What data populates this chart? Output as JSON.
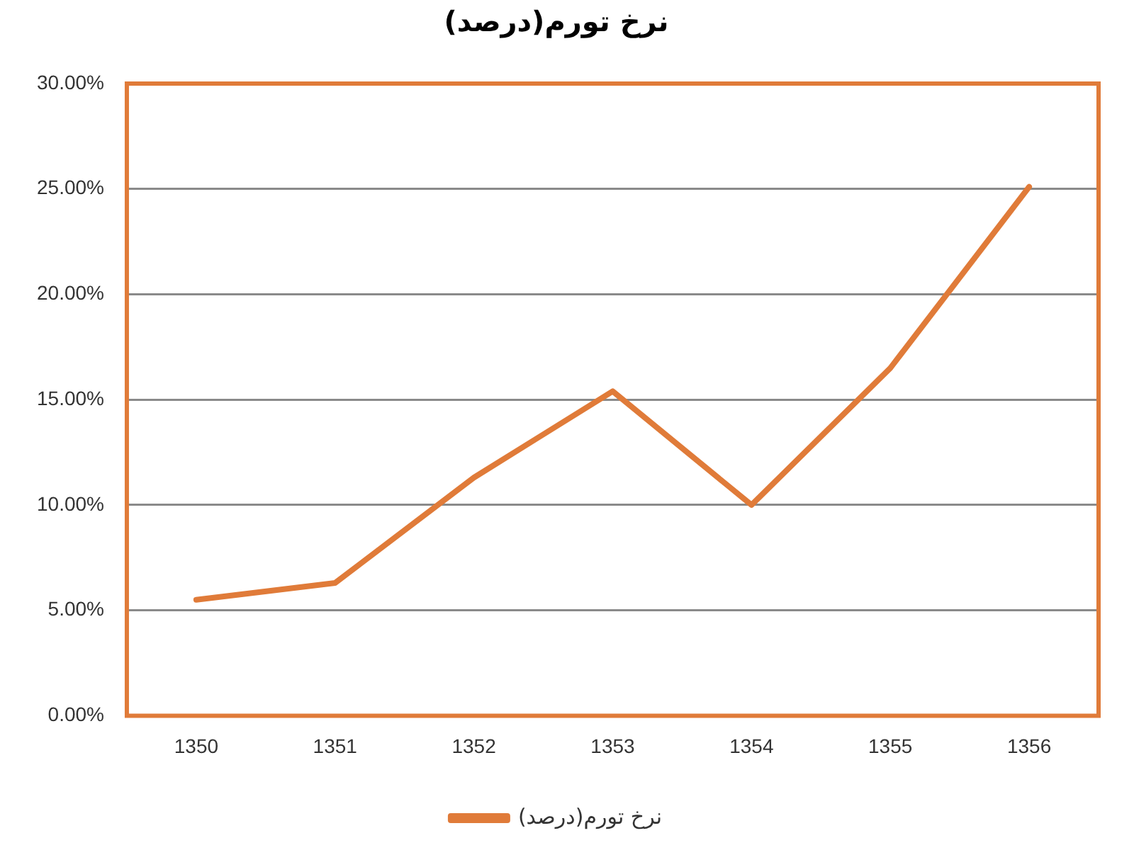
{
  "chart_data": {
    "type": "line",
    "title": "نرخ تورم(درصد)",
    "categories": [
      "1350",
      "1351",
      "1352",
      "1353",
      "1354",
      "1355",
      "1356"
    ],
    "series": [
      {
        "name": "نرخ تورم(درصد)",
        "color": "#e07b39",
        "values": [
          5.5,
          6.3,
          11.3,
          15.4,
          10.0,
          16.5,
          25.1
        ]
      }
    ],
    "ylim": [
      0,
      30
    ],
    "yticks": [
      {
        "value": 0,
        "label": "0.00%"
      },
      {
        "value": 5,
        "label": "5.00%"
      },
      {
        "value": 10,
        "label": "10.00%"
      },
      {
        "value": 15,
        "label": "15.00%"
      },
      {
        "value": 20,
        "label": "20.00%"
      },
      {
        "value": 25,
        "label": "25.00%"
      },
      {
        "value": 30,
        "label": "30.00%"
      }
    ],
    "grid": "y",
    "legend": "bottom",
    "marker": "none",
    "line_style": "solid"
  }
}
